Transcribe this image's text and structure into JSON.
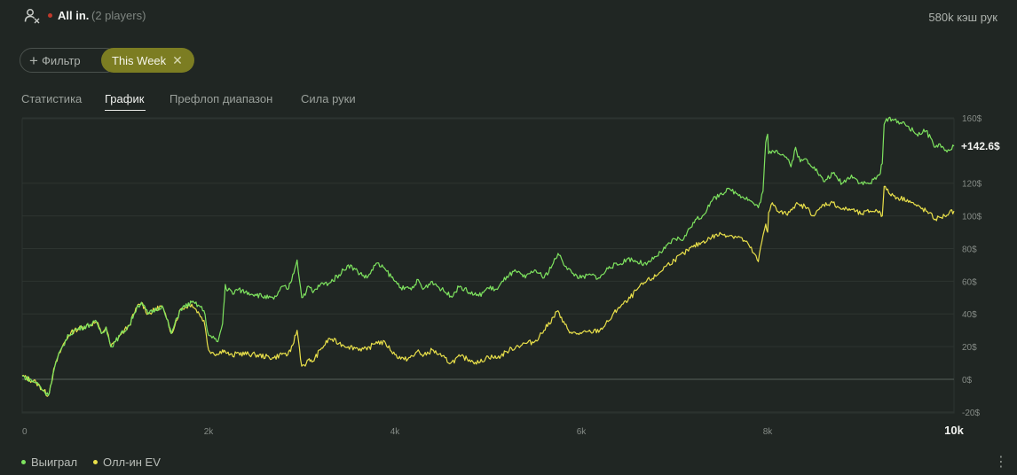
{
  "header": {
    "icon": "user-icon",
    "title": "All in",
    "title_dot": ".",
    "players": "(2 players)",
    "hands": "580k кэш рук"
  },
  "filters": {
    "add_label": "Фильтр",
    "active_label": "This Week",
    "active_color": "#7c7d22"
  },
  "tabs": [
    {
      "label": "Статистика",
      "active": false
    },
    {
      "label": "График",
      "active": true
    },
    {
      "label": "Префлоп диапазон",
      "active": false
    },
    {
      "label": "Сила руки",
      "active": false
    }
  ],
  "legend": [
    {
      "label": "Выиграл",
      "color": "#7ee35f"
    },
    {
      "label": "Олл-ин EV",
      "color": "#e9e04a"
    }
  ],
  "chart_data": {
    "type": "line",
    "ylim": [
      -20,
      160
    ],
    "xlim": [
      0,
      10000
    ],
    "x_ticks": [
      "0",
      "2k",
      "4k",
      "6k",
      "8k",
      "10k"
    ],
    "y_ticks": [
      "160$",
      "120$",
      "100$",
      "80$",
      "60$",
      "40$",
      "20$",
      "0$",
      "-20$"
    ],
    "end_label": "+142.6$",
    "series": [
      {
        "name": "Выиграл",
        "color": "#7ee35f",
        "x": [
          0,
          150,
          280,
          350,
          430,
          500,
          560,
          800,
          850,
          900,
          950,
          1000,
          1050,
          1150,
          1200,
          1230,
          1280,
          1350,
          1500,
          1550,
          1600,
          1700,
          1820,
          1900,
          1950,
          2000,
          2100,
          2150,
          2180,
          2200,
          2230,
          2260,
          2300,
          2500,
          2700,
          2800,
          2850,
          2880,
          2950,
          3000,
          3050,
          3070,
          3090,
          3120,
          3200,
          3300,
          3400,
          3500,
          3600,
          3700,
          3800,
          3900,
          4000,
          4100,
          4200,
          4250,
          4300,
          4400,
          4500,
          4600,
          4700,
          4800,
          4900,
          5000,
          5100,
          5200,
          5300,
          5400,
          5500,
          5600,
          5700,
          5750,
          5800,
          5900,
          6000,
          6100,
          6200,
          6300,
          6400,
          6500,
          6600,
          6700,
          6800,
          6900,
          7000,
          7100,
          7200,
          7300,
          7400,
          7500,
          7600,
          7700,
          7800,
          7900,
          7950,
          7980,
          8000,
          8010,
          8050,
          8100,
          8200,
          8250,
          8300,
          8350,
          8400,
          8500,
          8600,
          8700,
          8800,
          8900,
          9000,
          9100,
          9200,
          9230,
          9250,
          9300,
          9400,
          9500,
          9600,
          9700,
          9800,
          9850,
          9900,
          9950,
          10000
        ],
        "values": [
          2,
          -2,
          -10,
          8,
          20,
          27,
          30,
          35,
          28,
          32,
          20,
          23,
          27,
          33,
          40,
          44,
          47,
          40,
          45,
          37,
          28,
          43,
          47,
          45,
          42,
          27,
          23,
          34,
          58,
          54,
          55,
          52,
          55,
          52,
          49,
          57,
          55,
          59,
          73,
          50,
          54,
          57,
          56,
          53,
          58,
          59,
          64,
          70,
          66,
          62,
          71,
          67,
          60,
          55,
          56,
          61,
          55,
          60,
          55,
          51,
          57,
          53,
          51,
          56,
          55,
          63,
          66,
          62,
          67,
          62,
          71,
          77,
          72,
          65,
          62,
          64,
          62,
          69,
          70,
          74,
          72,
          70,
          75,
          80,
          86,
          86,
          96,
          100,
          109,
          114,
          116,
          113,
          110,
          105,
          115,
          145,
          150,
          138,
          140,
          140,
          136,
          130,
          142,
          133,
          135,
          130,
          121,
          126,
          120,
          125,
          120,
          120,
          125,
          132,
          156,
          160,
          158,
          155,
          150,
          152,
          142,
          144,
          140,
          140,
          142.6
        ]
      },
      {
        "name": "Олл-ин EV",
        "color": "#e9e04a",
        "x": [
          0,
          150,
          280,
          350,
          430,
          500,
          560,
          800,
          850,
          900,
          950,
          1000,
          1050,
          1150,
          1200,
          1230,
          1280,
          1350,
          1500,
          1550,
          1600,
          1700,
          1820,
          1900,
          1950,
          2000,
          2100,
          2150,
          2180,
          2200,
          2230,
          2260,
          2300,
          2500,
          2700,
          2800,
          2850,
          2880,
          2950,
          3000,
          3050,
          3070,
          3090,
          3120,
          3200,
          3300,
          3400,
          3500,
          3600,
          3700,
          3800,
          3900,
          4000,
          4100,
          4200,
          4250,
          4300,
          4400,
          4500,
          4600,
          4700,
          4800,
          4900,
          5000,
          5100,
          5200,
          5300,
          5400,
          5500,
          5600,
          5700,
          5750,
          5800,
          5900,
          6000,
          6100,
          6200,
          6300,
          6400,
          6500,
          6600,
          6700,
          6800,
          6900,
          7000,
          7100,
          7200,
          7300,
          7400,
          7500,
          7600,
          7700,
          7800,
          7900,
          7950,
          7980,
          8000,
          8010,
          8050,
          8100,
          8200,
          8250,
          8300,
          8350,
          8400,
          8500,
          8600,
          8700,
          8800,
          8900,
          9000,
          9100,
          9200,
          9230,
          9250,
          9300,
          9400,
          9500,
          9600,
          9700,
          9800,
          9850,
          9900,
          9950,
          10000
        ],
        "values": [
          2,
          -2,
          -10,
          8,
          20,
          27,
          30,
          35,
          28,
          32,
          20,
          23,
          27,
          33,
          40,
          44,
          47,
          40,
          45,
          37,
          28,
          43,
          46,
          40,
          36,
          18,
          15,
          18,
          17,
          16,
          15,
          14,
          16,
          15,
          13,
          16,
          15,
          17,
          30,
          8,
          10,
          12,
          11,
          11,
          18,
          25,
          22,
          20,
          19,
          18,
          23,
          22,
          15,
          12,
          14,
          18,
          14,
          18,
          14,
          10,
          14,
          12,
          10,
          14,
          13,
          17,
          20,
          22,
          23,
          30,
          38,
          42,
          35,
          28,
          28,
          29,
          30,
          36,
          44,
          48,
          55,
          60,
          63,
          69,
          73,
          77,
          81,
          84,
          87,
          89,
          88,
          87,
          82,
          72,
          88,
          95,
          90,
          102,
          108,
          103,
          101,
          104,
          107,
          106,
          106,
          100,
          107,
          108,
          104,
          104,
          101,
          103,
          103,
          100,
          118,
          114,
          111,
          110,
          106,
          103,
          98,
          99,
          100,
          102,
          103
        ]
      }
    ]
  }
}
